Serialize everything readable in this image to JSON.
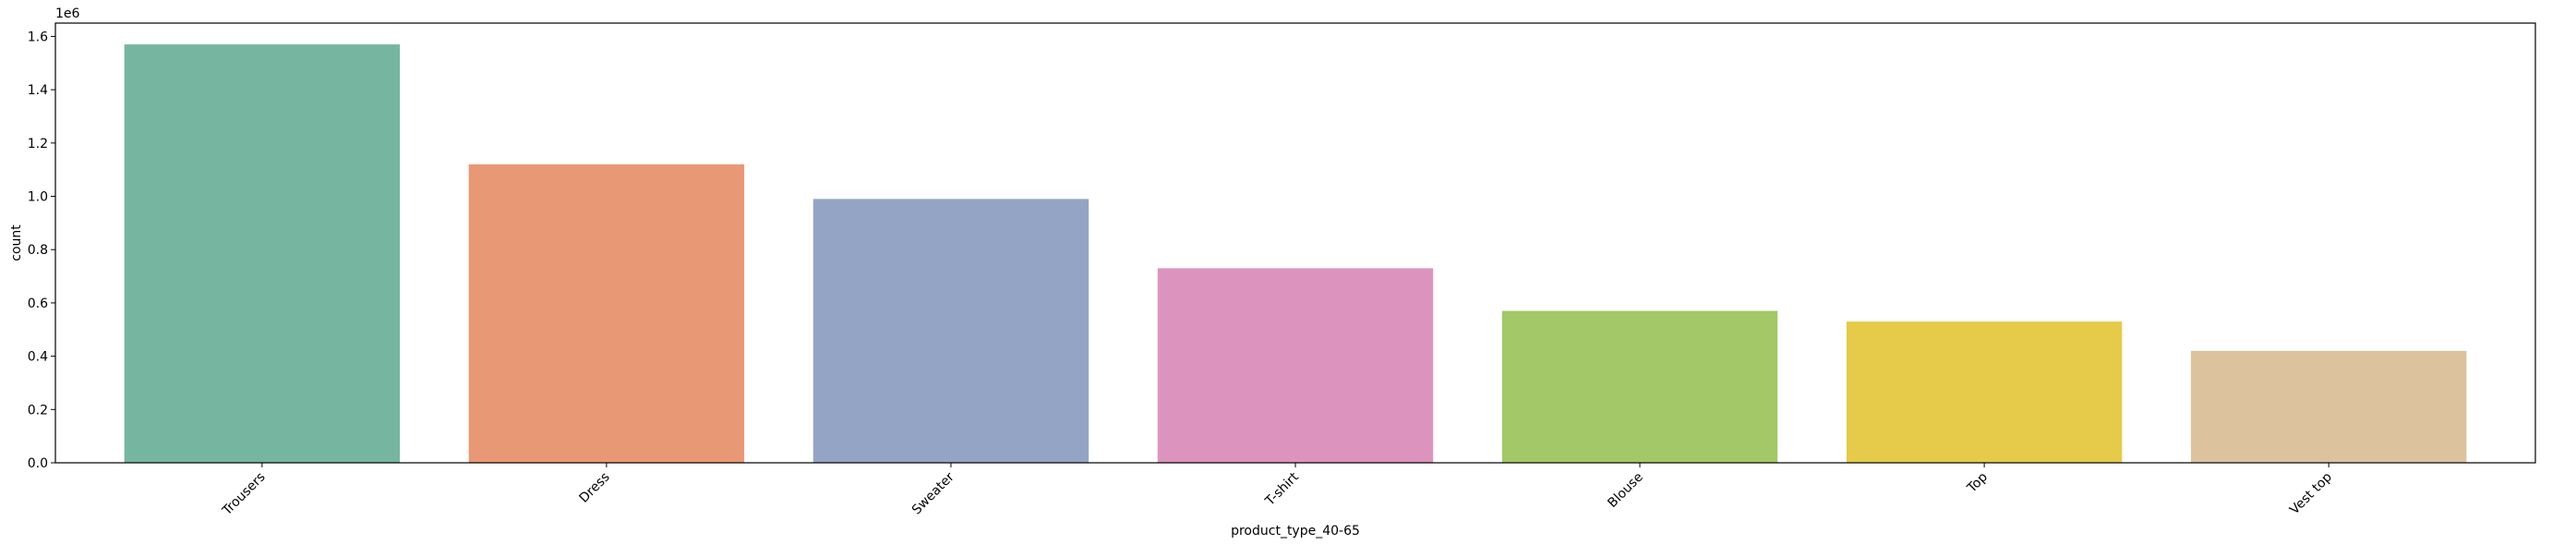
{
  "chart_data": {
    "type": "bar",
    "categories": [
      "Trousers",
      "Dress",
      "Sweater",
      "T-shirt",
      "Blouse",
      "Top",
      "Vest top"
    ],
    "values": [
      1570000,
      1120000,
      990000,
      730000,
      570000,
      530000,
      420000
    ],
    "colors": [
      "#76b6a0",
      "#e99875",
      "#94a4c4",
      "#dc94be",
      "#a3c867",
      "#e5cb49",
      "#dcc39e"
    ],
    "xlabel": "product_type_40-65",
    "ylabel": "count",
    "ylim": [
      0,
      1650000
    ],
    "yticks": [
      0,
      200000,
      400000,
      600000,
      800000,
      1000000,
      1200000,
      1400000,
      1600000
    ],
    "ytick_labels": [
      "0.0",
      "0.2",
      "0.4",
      "0.6",
      "0.8",
      "1.0",
      "1.2",
      "1.4",
      "1.6"
    ],
    "offset_label": "1e6",
    "grid": false,
    "legend": false
  }
}
